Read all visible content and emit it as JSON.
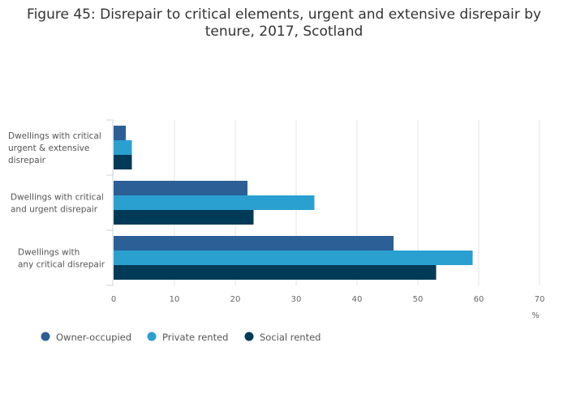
{
  "chart_data": {
    "type": "bar",
    "orientation": "horizontal",
    "title_line1": "Figure 45: Disrepair to critical elements, urgent and extensive disrepair by",
    "title_line2": "tenure, 2017, Scotland",
    "categories": [
      [
        "Dwellings with critical",
        "urgent & extensive",
        "disrepair"
      ],
      [
        "Dwellings with critical",
        "and urgent disrepair"
      ],
      [
        "Dwellings with",
        "any critical disrepair"
      ]
    ],
    "series": [
      {
        "name": "Owner-occupied",
        "color": "#2b5f96",
        "values": [
          2,
          22,
          46
        ]
      },
      {
        "name": "Private rented",
        "color": "#2aa0d0",
        "values": [
          3,
          33,
          59
        ]
      },
      {
        "name": "Social rented",
        "color": "#003a56",
        "values": [
          3,
          23,
          53
        ]
      }
    ],
    "xlabel": "%",
    "xlim": [
      0,
      70
    ],
    "xticks": [
      0,
      10,
      20,
      30,
      40,
      50,
      60,
      70
    ],
    "grid": true,
    "legend_position": "bottom-left"
  }
}
